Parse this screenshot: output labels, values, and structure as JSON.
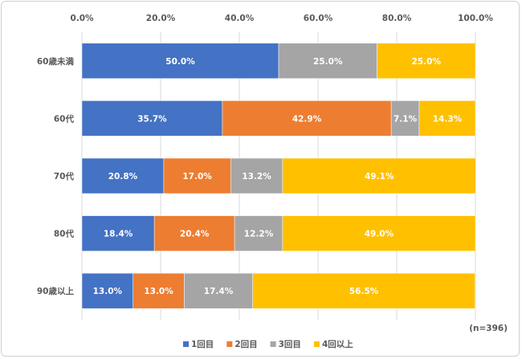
{
  "chart_data": {
    "type": "bar",
    "orientation": "horizontal",
    "stacked": true,
    "categories": [
      "60歳未満",
      "60代",
      "70代",
      "80代",
      "90歳以上"
    ],
    "series": [
      {
        "name": "1回目",
        "color": "#4472C4",
        "values": [
          50.0,
          35.7,
          20.8,
          18.4,
          13.0
        ]
      },
      {
        "name": "2回目",
        "color": "#ED7D31",
        "values": [
          0,
          42.9,
          17.0,
          20.4,
          13.0
        ]
      },
      {
        "name": "3回目",
        "color": "#A5A5A5",
        "values": [
          25.0,
          7.1,
          13.2,
          12.2,
          17.4
        ]
      },
      {
        "name": "4回以上",
        "color": "#FFC000",
        "values": [
          25.0,
          14.3,
          49.1,
          49.0,
          56.5
        ]
      }
    ],
    "xlim": [
      0,
      100
    ],
    "xticks": [
      "0.0%",
      "20.0%",
      "40.0%",
      "60.0%",
      "80.0%",
      "100.0%"
    ],
    "axis_position": "top",
    "legend_position": "bottom",
    "grid": true,
    "note": "(n=396)"
  }
}
